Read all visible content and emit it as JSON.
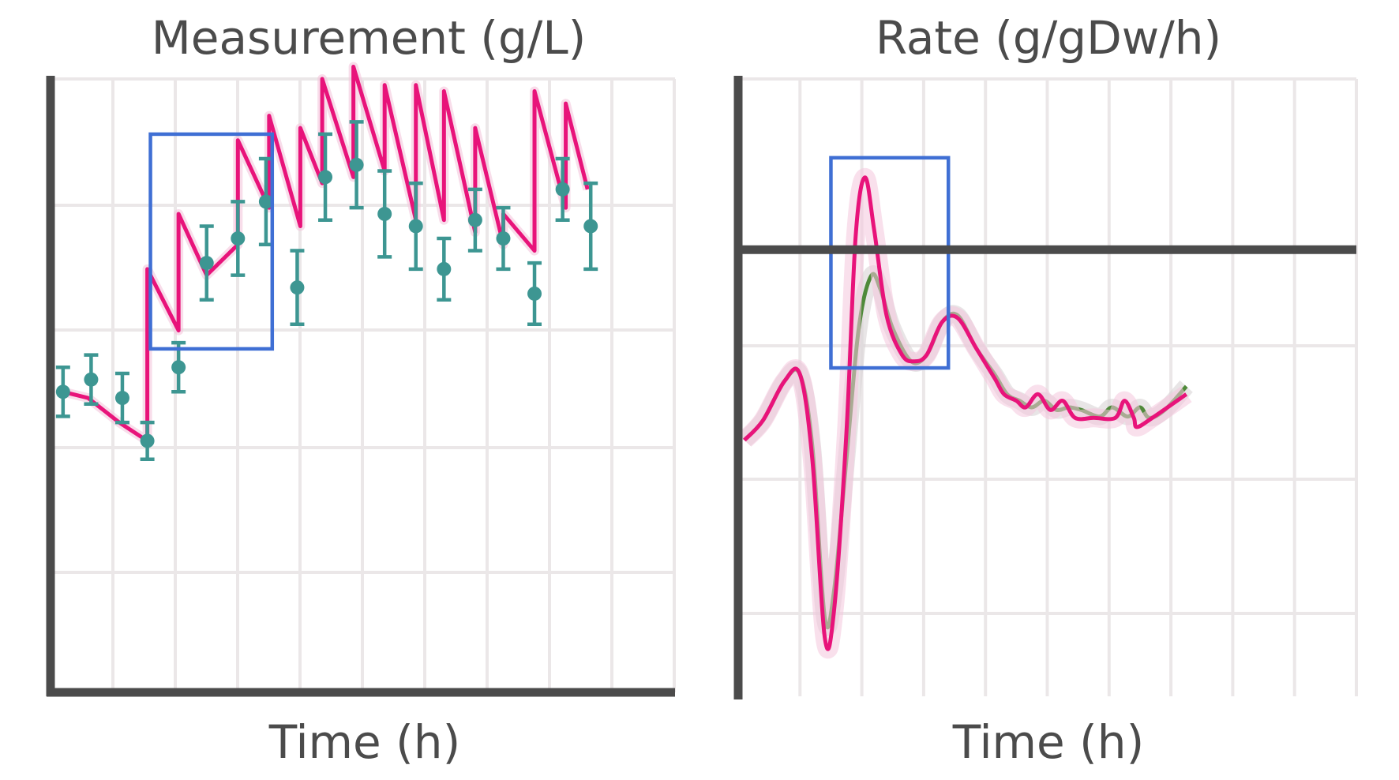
{
  "colors": {
    "model": "#e8137a",
    "model_alt": "#4f8a3a",
    "data": "#3d9692",
    "highlight": "#3f6fd4",
    "axis": "#4b4b4b",
    "grid": "#ebe7e8"
  },
  "chart_data": [
    {
      "type": "line",
      "title": "Measurement (g/L)",
      "xlabel": "Time (h)",
      "ylabel": "",
      "grid": true,
      "xlim": [
        0,
        20
      ],
      "ylim": [
        0,
        10
      ],
      "series": [
        {
          "kind": "model",
          "points": [
            [
              0.4,
              4.9
            ],
            [
              1.2,
              4.8
            ],
            [
              2.2,
              4.4
            ],
            [
              3.1,
              4.1
            ],
            [
              3.1,
              6.9
            ],
            [
              4.1,
              5.9
            ],
            [
              4.1,
              7.8
            ],
            [
              5.0,
              6.8
            ],
            [
              6.0,
              7.3
            ],
            [
              6.0,
              9.0
            ],
            [
              7.0,
              7.9
            ],
            [
              7.0,
              9.4
            ],
            [
              8.0,
              7.6
            ],
            [
              8.0,
              9.2
            ],
            [
              8.7,
              8.3
            ],
            [
              8.7,
              10.0
            ],
            [
              9.7,
              8.4
            ],
            [
              9.7,
              10.2
            ],
            [
              10.7,
              8.5
            ],
            [
              10.7,
              9.9
            ],
            [
              11.7,
              7.7
            ],
            [
              11.7,
              9.9
            ],
            [
              12.6,
              7.7
            ],
            [
              12.6,
              9.8
            ],
            [
              13.6,
              7.5
            ],
            [
              13.6,
              9.2
            ],
            [
              14.5,
              7.3
            ],
            [
              14.5,
              7.8
            ],
            [
              15.5,
              7.2
            ],
            [
              15.5,
              9.8
            ],
            [
              16.5,
              7.9
            ],
            [
              16.5,
              9.6
            ],
            [
              17.2,
              8.2
            ]
          ]
        },
        {
          "kind": "measurement",
          "points": [
            [
              0.4,
              4.9,
              0.4
            ],
            [
              1.3,
              5.1,
              0.4
            ],
            [
              2.3,
              4.8,
              0.4
            ],
            [
              3.1,
              4.1,
              0.3
            ],
            [
              4.1,
              5.3,
              0.4
            ],
            [
              5.0,
              7.0,
              0.6
            ],
            [
              6.0,
              7.4,
              0.6
            ],
            [
              6.9,
              8.0,
              0.7
            ],
            [
              7.9,
              6.6,
              0.6
            ],
            [
              8.8,
              8.4,
              0.7
            ],
            [
              9.8,
              8.6,
              0.7
            ],
            [
              10.7,
              7.8,
              0.7
            ],
            [
              11.7,
              7.6,
              0.7
            ],
            [
              12.6,
              6.9,
              0.5
            ],
            [
              13.6,
              7.7,
              0.5
            ],
            [
              14.5,
              7.4,
              0.5
            ],
            [
              15.5,
              6.5,
              0.5
            ],
            [
              16.4,
              8.2,
              0.5
            ],
            [
              17.3,
              7.6,
              0.7
            ]
          ]
        }
      ],
      "highlight_box": {
        "x": [
          3.2,
          7.1
        ],
        "y": [
          5.6,
          9.1
        ]
      }
    },
    {
      "type": "area",
      "title": "Rate (g/gDw/h)",
      "xlabel": "Time (h)",
      "ylabel": "",
      "grid": true,
      "xlim": [
        0,
        20
      ],
      "ylim": [
        -3.4,
        1.3
      ],
      "zero_line": 0,
      "series": [
        {
          "kind": "model_alt",
          "points": [
            [
              0.2,
              -1.45
            ],
            [
              0.8,
              -1.3
            ],
            [
              1.5,
              -1.0
            ],
            [
              2.0,
              -0.95
            ],
            [
              2.4,
              -1.5
            ],
            [
              2.8,
              -2.8
            ],
            [
              3.1,
              -2.6
            ],
            [
              3.5,
              -1.6
            ],
            [
              3.9,
              -0.6
            ],
            [
              4.3,
              -0.2
            ],
            [
              4.6,
              -0.3
            ],
            [
              5.0,
              -0.6
            ],
            [
              5.6,
              -0.85
            ],
            [
              6.1,
              -0.8
            ],
            [
              6.6,
              -0.55
            ],
            [
              7.1,
              -0.5
            ],
            [
              7.7,
              -0.75
            ],
            [
              8.3,
              -0.95
            ],
            [
              8.7,
              -1.1
            ],
            [
              9.1,
              -1.15
            ],
            [
              9.5,
              -1.2
            ],
            [
              9.9,
              -1.15
            ],
            [
              10.3,
              -1.22
            ],
            [
              10.7,
              -1.2
            ],
            [
              11.1,
              -1.22
            ],
            [
              11.7,
              -1.27
            ],
            [
              12.1,
              -1.2
            ],
            [
              12.6,
              -1.27
            ],
            [
              13.0,
              -1.2
            ],
            [
              13.3,
              -1.28
            ],
            [
              13.8,
              -1.22
            ],
            [
              14.5,
              -1.04
            ]
          ]
        },
        {
          "kind": "model",
          "points": [
            [
              0.2,
              -1.45
            ],
            [
              0.8,
              -1.3
            ],
            [
              1.5,
              -1.0
            ],
            [
              2.0,
              -0.95
            ],
            [
              2.4,
              -1.6
            ],
            [
              2.8,
              -2.95
            ],
            [
              3.1,
              -2.75
            ],
            [
              3.5,
              -1.4
            ],
            [
              3.8,
              0.1
            ],
            [
              4.1,
              0.55
            ],
            [
              4.4,
              0.15
            ],
            [
              4.8,
              -0.5
            ],
            [
              5.3,
              -0.8
            ],
            [
              5.7,
              -0.85
            ],
            [
              6.1,
              -0.8
            ],
            [
              6.6,
              -0.55
            ],
            [
              7.1,
              -0.52
            ],
            [
              7.7,
              -0.75
            ],
            [
              8.3,
              -0.98
            ],
            [
              8.6,
              -1.1
            ],
            [
              9.0,
              -1.15
            ],
            [
              9.3,
              -1.2
            ],
            [
              9.7,
              -1.1
            ],
            [
              10.1,
              -1.22
            ],
            [
              10.5,
              -1.15
            ],
            [
              10.9,
              -1.28
            ],
            [
              11.5,
              -1.28
            ],
            [
              12.2,
              -1.28
            ],
            [
              12.5,
              -1.15
            ],
            [
              12.8,
              -1.28
            ],
            [
              12.9,
              -1.35
            ],
            [
              13.4,
              -1.28
            ],
            [
              14.5,
              -1.1
            ]
          ]
        }
      ],
      "highlight_box": {
        "x": [
          3.0,
          6.8
        ],
        "y": [
          -0.9,
          0.7
        ]
      }
    }
  ]
}
